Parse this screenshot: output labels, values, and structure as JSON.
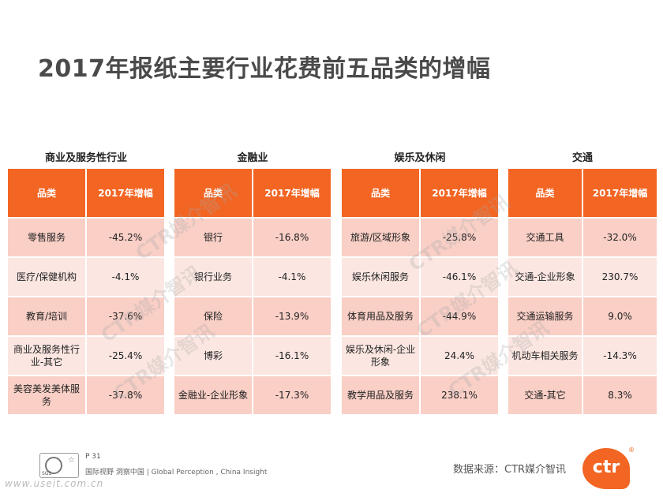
{
  "title": "2017年报纸主要行业花费前五品类的增幅",
  "header": {
    "col1": "品类",
    "col2": "2017年增幅"
  },
  "panels": [
    {
      "heading": "商业及服务性行业",
      "rows": [
        {
          "category": "零售服务",
          "growth": "-45.2%"
        },
        {
          "category": "医疗/保健机构",
          "growth": "-4.1%"
        },
        {
          "category": "教育/培训",
          "growth": "-37.6%"
        },
        {
          "category": "商业及服务性行业-其它",
          "growth": "-25.4%"
        },
        {
          "category": "美容美发美体服务",
          "growth": "-37.8%"
        }
      ]
    },
    {
      "heading": "金融业",
      "rows": [
        {
          "category": "银行",
          "growth": "-16.8%"
        },
        {
          "category": "银行业务",
          "growth": "-4.1%"
        },
        {
          "category": "保险",
          "growth": "-13.9%"
        },
        {
          "category": "博彩",
          "growth": "-16.1%"
        },
        {
          "category": "金融业-企业形象",
          "growth": "-17.3%"
        }
      ]
    },
    {
      "heading": "娱乐及休闲",
      "rows": [
        {
          "category": "旅游/区域形象",
          "growth": "-25.8%"
        },
        {
          "category": "娱乐休闲服务",
          "growth": "-46.1%"
        },
        {
          "category": "体育用品及服务",
          "growth": "-44.9%"
        },
        {
          "category": "娱乐及休闲-企业形象",
          "growth": "24.4%"
        },
        {
          "category": "教学用品及服务",
          "growth": "238.1%"
        }
      ]
    },
    {
      "heading": "交通",
      "rows": [
        {
          "category": "交通工具",
          "growth": "-32.0%"
        },
        {
          "category": "交通-企业形象",
          "growth": "230.7%"
        },
        {
          "category": "交通运输服务",
          "growth": "9.0%"
        },
        {
          "category": "机动车相关服务",
          "growth": "-14.3%"
        },
        {
          "category": "交通-其它",
          "growth": "8.3%"
        }
      ]
    }
  ],
  "watermark": "CTR媒介智讯",
  "footer": {
    "page": "P 31",
    "tagline": "国际视野  洞察中国 |  Global Perception , China Insight",
    "cert_code": "SGS",
    "source": "数据来源：CTR媒介智讯",
    "logo_text": "ctr",
    "logo_mark": "®",
    "site": "www.useit.com.cn"
  }
}
